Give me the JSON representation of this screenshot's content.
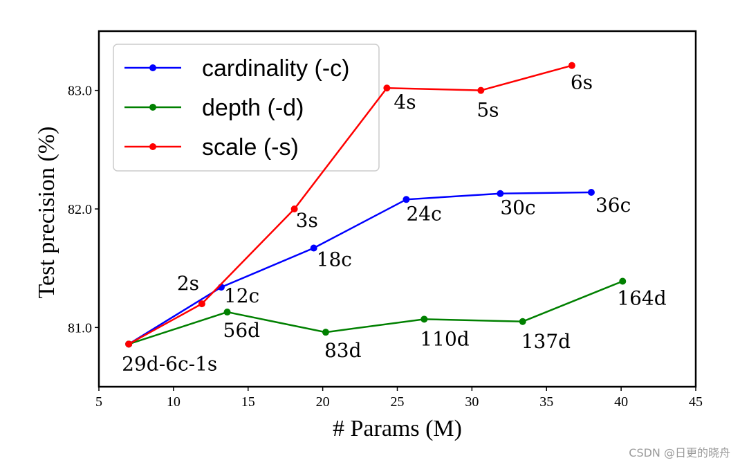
{
  "chart_data": {
    "type": "line",
    "title": "",
    "xlabel": "# Params (M)",
    "ylabel": "Test precision (%)",
    "xlim": [
      5,
      45
    ],
    "ylim": [
      80.5,
      83.5
    ],
    "x_ticks": [
      5,
      10,
      15,
      20,
      25,
      30,
      35,
      40,
      45
    ],
    "y_ticks": [
      81.0,
      82.0,
      83.0
    ],
    "y_tick_labels": [
      "81.0",
      "82.0",
      "83.0"
    ],
    "grid": false,
    "legend_position": "top-left",
    "series": [
      {
        "name": "cardinality (-c)",
        "color": "#0000ff",
        "x": [
          7.0,
          13.2,
          19.4,
          25.6,
          31.9,
          38.0
        ],
        "y": [
          80.86,
          81.34,
          81.67,
          82.08,
          82.13,
          82.14
        ],
        "labels": [
          "",
          "12c",
          "18c",
          "24c",
          "30c",
          "36c"
        ]
      },
      {
        "name": "depth (-d)",
        "color": "#008000",
        "x": [
          7.0,
          13.6,
          20.2,
          26.8,
          33.4,
          40.1
        ],
        "y": [
          80.86,
          81.13,
          80.96,
          81.07,
          81.05,
          81.39
        ],
        "labels": [
          "",
          "56d",
          "83d",
          "110d",
          "137d",
          "164d"
        ]
      },
      {
        "name": "scale (-s)",
        "color": "#ff0000",
        "x": [
          7.0,
          11.9,
          18.1,
          24.3,
          30.6,
          36.7
        ],
        "y": [
          80.86,
          81.2,
          82.0,
          83.02,
          83.0,
          83.21
        ],
        "labels": [
          "",
          "2s",
          "3s",
          "4s",
          "5s",
          "6s"
        ]
      }
    ],
    "annotations": [
      {
        "text": "29d-6c-1s",
        "x": 7.0,
        "y": 80.86
      }
    ]
  },
  "watermark": "CSDN @日更的晓舟"
}
